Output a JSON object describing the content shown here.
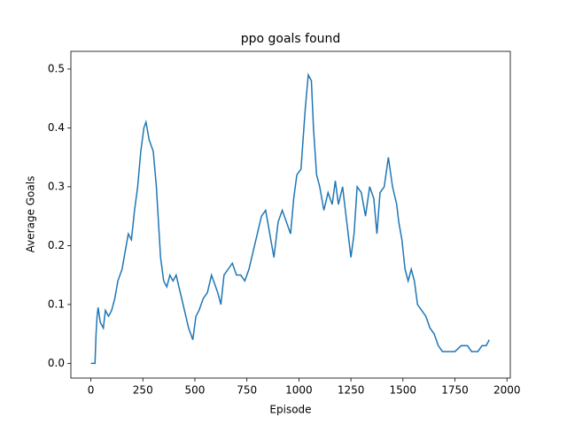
{
  "chart_data": {
    "type": "line",
    "title": "ppo goals found",
    "x_label": "Episode",
    "y_label": "Average Goals",
    "x": [
      0,
      20,
      25,
      30,
      35,
      45,
      60,
      70,
      85,
      100,
      115,
      130,
      150,
      165,
      180,
      195,
      210,
      225,
      240,
      255,
      265,
      280,
      300,
      315,
      325,
      335,
      350,
      365,
      380,
      395,
      410,
      430,
      450,
      470,
      490,
      505,
      520,
      540,
      560,
      580,
      610,
      625,
      640,
      660,
      680,
      700,
      720,
      740,
      760,
      780,
      800,
      820,
      840,
      860,
      880,
      900,
      920,
      940,
      960,
      975,
      990,
      1010,
      1030,
      1045,
      1060,
      1070,
      1085,
      1100,
      1120,
      1140,
      1160,
      1175,
      1190,
      1210,
      1230,
      1250,
      1265,
      1280,
      1300,
      1320,
      1340,
      1360,
      1375,
      1390,
      1410,
      1430,
      1450,
      1470,
      1480,
      1495,
      1510,
      1525,
      1540,
      1555,
      1570,
      1590,
      1610,
      1630,
      1650,
      1670,
      1690,
      1720,
      1750,
      1780,
      1810,
      1830,
      1860,
      1880,
      1900,
      1915
    ],
    "series": [
      {
        "name": "ppo",
        "color": "#1f77b4",
        "values": [
          0,
          0,
          0.05,
          0.08,
          0.095,
          0.07,
          0.06,
          0.09,
          0.08,
          0.09,
          0.11,
          0.14,
          0.16,
          0.19,
          0.22,
          0.21,
          0.26,
          0.3,
          0.36,
          0.4,
          0.41,
          0.38,
          0.36,
          0.3,
          0.24,
          0.18,
          0.14,
          0.13,
          0.15,
          0.14,
          0.15,
          0.12,
          0.09,
          0.06,
          0.04,
          0.08,
          0.09,
          0.11,
          0.12,
          0.15,
          0.12,
          0.1,
          0.15,
          0.16,
          0.17,
          0.15,
          0.15,
          0.14,
          0.16,
          0.19,
          0.22,
          0.25,
          0.26,
          0.22,
          0.18,
          0.24,
          0.26,
          0.24,
          0.22,
          0.28,
          0.32,
          0.33,
          0.43,
          0.49,
          0.48,
          0.4,
          0.32,
          0.3,
          0.26,
          0.29,
          0.27,
          0.31,
          0.27,
          0.3,
          0.24,
          0.18,
          0.22,
          0.3,
          0.29,
          0.25,
          0.3,
          0.28,
          0.22,
          0.29,
          0.3,
          0.35,
          0.3,
          0.27,
          0.24,
          0.21,
          0.16,
          0.14,
          0.16,
          0.14,
          0.1,
          0.09,
          0.08,
          0.06,
          0.05,
          0.03,
          0.02,
          0.02,
          0.02,
          0.03,
          0.03,
          0.02,
          0.02,
          0.03,
          0.03,
          0.04
        ]
      }
    ],
    "xlim": [
      -96,
      2016
    ],
    "xticks": [
      0,
      250,
      500,
      750,
      1000,
      1250,
      1500,
      1750,
      2000
    ],
    "ylim": [
      -0.025,
      0.53
    ],
    "yticks": [
      {
        "value": 0,
        "label": "0.0"
      },
      0.1,
      0.2,
      0.3,
      0.4,
      0.5
    ]
  }
}
